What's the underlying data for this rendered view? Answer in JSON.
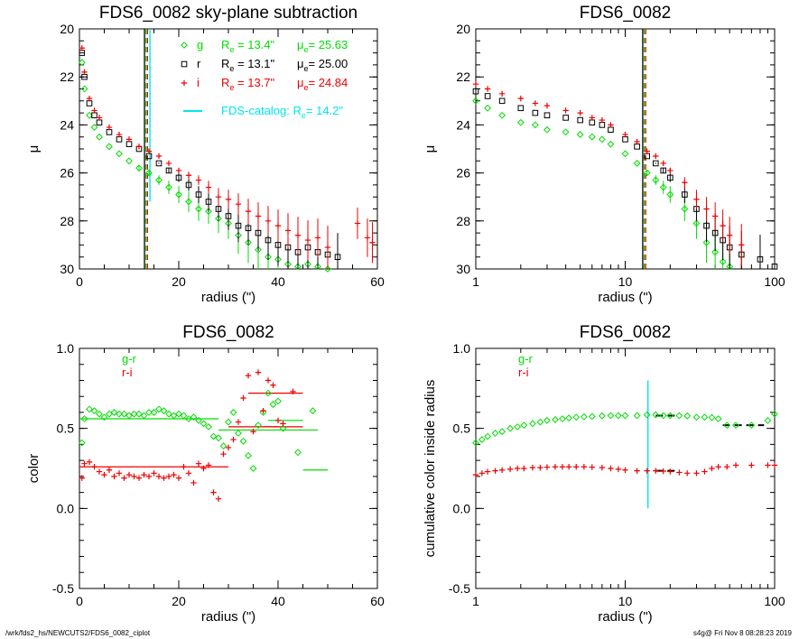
{
  "footer": {
    "path": "/wrk/fds2_hs/NEWCUTS2/FDS6_0082_ciplot",
    "stamp": "s4g@  Fri Nov  8 08:28:23 2019"
  },
  "colors": {
    "g": "#00dd00",
    "r": "#000000",
    "i": "#ee0000",
    "catalog": "#00e5ee"
  },
  "chart_data": [
    {
      "type": "scatter",
      "title": "FDS6_0082 sky-plane subtraction",
      "xlabel": "radius (\")",
      "ylabel": "μ",
      "xscale": "linear",
      "xlim": [
        0,
        60
      ],
      "ylim": [
        30,
        20
      ],
      "xticks": [
        "0",
        "20",
        "40",
        "60"
      ],
      "yticks": [
        "20",
        "22",
        "24",
        "26",
        "28",
        "30"
      ],
      "legend": {
        "position": "top-right",
        "entries": [
          {
            "symbol": "◇",
            "band": "g",
            "re_label": "R",
            "re_sub": "e",
            "re_value": "=  13.4\"",
            "mu_label": "μ",
            "mu_sub": "e",
            "mu_value": "= 25.63"
          },
          {
            "symbol": "□",
            "band": "r",
            "re_label": "R",
            "re_sub": "e",
            "re_value": "=  13.1\"",
            "mu_label": "μ",
            "mu_sub": "e",
            "mu_value": "= 25.00"
          },
          {
            "symbol": "+",
            "band": "i",
            "re_label": "R",
            "re_sub": "e",
            "re_value": "=  13.7\"",
            "mu_label": "μ",
            "mu_sub": "e",
            "mu_value": "= 24.84"
          }
        ],
        "catalog": {
          "text": "FDS-catalog: R",
          "sub": "e",
          "value": "=  14.2\""
        }
      },
      "vlines": [
        {
          "x": 13.1,
          "band": "r",
          "style": "solid"
        },
        {
          "x": 13.4,
          "band": "g",
          "style": "dashed"
        },
        {
          "x": 13.7,
          "band": "i",
          "style": "dashed"
        },
        {
          "x": 14.2,
          "band": "catalog",
          "style": "solid",
          "ymin": 27.2
        }
      ],
      "series": [
        {
          "name": "g",
          "marker": "diamond",
          "x": [
            0.5,
            1,
            2,
            3,
            4,
            6,
            8,
            10,
            12,
            14,
            16,
            18,
            20,
            22,
            24,
            26,
            28,
            30,
            32,
            34,
            36,
            38,
            40,
            42,
            44,
            46,
            48,
            50
          ],
          "y": [
            21.4,
            22.5,
            23.6,
            24.1,
            24.5,
            24.9,
            25.2,
            25.5,
            25.8,
            26.0,
            26.3,
            26.6,
            26.9,
            27.2,
            27.5,
            27.6,
            27.9,
            28.1,
            28.6,
            28.9,
            29.2,
            29.5,
            29.6,
            29.8,
            29.9,
            29.8,
            29.9,
            30.0
          ]
        },
        {
          "name": "r",
          "marker": "square",
          "x": [
            0.5,
            1,
            2,
            3,
            4,
            6,
            8,
            10,
            12,
            14,
            16,
            18,
            20,
            22,
            24,
            26,
            28,
            30,
            32,
            34,
            36,
            38,
            40,
            42,
            44,
            46,
            48,
            50,
            52
          ],
          "y": [
            21.0,
            22.0,
            23.1,
            23.6,
            23.9,
            24.3,
            24.6,
            24.8,
            25.0,
            25.3,
            25.6,
            25.9,
            26.2,
            26.5,
            26.9,
            27.2,
            27.5,
            27.8,
            28.2,
            28.3,
            28.5,
            28.8,
            29.0,
            29.1,
            29.3,
            29.1,
            29.3,
            29.4,
            29.5
          ]
        },
        {
          "name": "i",
          "marker": "plus",
          "x": [
            0.5,
            1,
            2,
            3,
            4,
            6,
            8,
            10,
            12,
            14,
            16,
            18,
            20,
            22,
            24,
            26,
            28,
            30,
            32,
            34,
            36,
            38,
            40,
            42,
            44,
            46,
            48,
            50,
            56,
            58,
            59
          ],
          "y": [
            20.8,
            21.8,
            22.9,
            23.4,
            23.7,
            24.1,
            24.4,
            24.6,
            24.9,
            25.1,
            25.3,
            25.6,
            25.9,
            26.1,
            26.3,
            26.6,
            27.0,
            27.1,
            27.3,
            27.6,
            27.8,
            28.0,
            28.2,
            28.4,
            28.6,
            28.8,
            28.7,
            29.1,
            28.1,
            28.7,
            28.9
          ]
        }
      ]
    },
    {
      "type": "scatter",
      "title": "FDS6_0082",
      "xlabel": "radius (\")",
      "ylabel": "μ",
      "xscale": "log",
      "xlim": [
        1,
        100
      ],
      "ylim": [
        30,
        20
      ],
      "xticks": [
        "1",
        "10",
        "100"
      ],
      "yticks": [
        "20",
        "22",
        "24",
        "26",
        "28",
        "30"
      ],
      "vlines": [
        {
          "x": 13.1,
          "band": "r",
          "style": "solid"
        },
        {
          "x": 13.4,
          "band": "g",
          "style": "dashed"
        },
        {
          "x": 13.7,
          "band": "i",
          "style": "dashed"
        }
      ],
      "series": [
        {
          "name": "g",
          "marker": "diamond",
          "x": [
            1,
            1.2,
            1.5,
            2,
            2.5,
            3,
            4,
            5,
            6,
            7,
            8,
            10,
            12,
            14,
            16,
            18,
            20,
            25,
            30,
            35,
            40,
            45,
            50
          ],
          "y": [
            23.0,
            23.3,
            23.6,
            23.9,
            24.0,
            24.2,
            24.3,
            24.4,
            24.5,
            24.6,
            24.8,
            25.2,
            25.6,
            26.0,
            26.3,
            26.6,
            26.9,
            27.5,
            28.1,
            28.9,
            29.3,
            29.7,
            29.9
          ]
        },
        {
          "name": "r",
          "marker": "square",
          "x": [
            1,
            1.2,
            1.5,
            2,
            2.5,
            3,
            4,
            5,
            6,
            7,
            8,
            10,
            12,
            14,
            16,
            18,
            20,
            25,
            30,
            35,
            40,
            45,
            50,
            60,
            80,
            100
          ],
          "y": [
            22.6,
            22.8,
            23.0,
            23.3,
            23.5,
            23.6,
            23.7,
            23.8,
            23.9,
            24.0,
            24.2,
            24.6,
            24.9,
            25.3,
            25.6,
            25.9,
            26.2,
            26.9,
            27.5,
            28.2,
            28.5,
            28.8,
            29.1,
            29.4,
            29.6,
            29.9
          ]
        },
        {
          "name": "i",
          "marker": "plus",
          "x": [
            1,
            1.2,
            1.5,
            2,
            2.5,
            3,
            4,
            5,
            6,
            7,
            8,
            10,
            12,
            14,
            16,
            18,
            20,
            25,
            30,
            35,
            40,
            45,
            50,
            60
          ],
          "y": [
            22.3,
            22.5,
            22.7,
            22.9,
            23.1,
            23.2,
            23.4,
            23.5,
            23.7,
            23.8,
            24.0,
            24.4,
            24.7,
            25.1,
            25.3,
            25.6,
            25.9,
            26.4,
            27.1,
            27.5,
            27.8,
            28.2,
            28.6,
            29.0
          ]
        }
      ]
    },
    {
      "type": "scatter",
      "title": "FDS6_0082",
      "xlabel": "radius (\")",
      "ylabel": "color",
      "xscale": "linear",
      "xlim": [
        0,
        60
      ],
      "ylim": [
        -0.5,
        1.0
      ],
      "xticks": [
        "0",
        "20",
        "40",
        "60"
      ],
      "yticks": [
        "-0.5",
        "0.0",
        "0.5",
        "1.0"
      ],
      "legend": {
        "position": "top-left",
        "entries": [
          {
            "label": "g-r",
            "band": "g"
          },
          {
            "label": "r-i",
            "band": "i"
          }
        ]
      },
      "series": [
        {
          "name": "g-r",
          "marker": "diamond",
          "x": [
            0.5,
            1,
            2,
            3,
            4,
            5,
            6,
            7,
            8,
            9,
            10,
            11,
            12,
            13,
            14,
            15,
            16,
            17,
            18,
            19,
            20,
            21,
            22,
            23,
            24,
            25,
            26,
            27,
            28,
            29,
            30,
            31,
            32,
            33,
            34,
            35,
            36,
            37,
            38,
            39,
            40,
            41,
            44,
            47
          ],
          "y": [
            0.41,
            0.56,
            0.62,
            0.61,
            0.59,
            0.57,
            0.59,
            0.6,
            0.59,
            0.59,
            0.58,
            0.59,
            0.59,
            0.58,
            0.6,
            0.6,
            0.62,
            0.61,
            0.59,
            0.58,
            0.59,
            0.58,
            0.56,
            0.57,
            0.55,
            0.53,
            0.51,
            0.45,
            0.44,
            0.39,
            0.54,
            0.6,
            0.47,
            0.42,
            0.33,
            0.25,
            0.52,
            0.6,
            0.72,
            0.65,
            0.67,
            0.5,
            0.35,
            0.61
          ]
        },
        {
          "name": "r-i",
          "marker": "plus",
          "x": [
            0.5,
            1,
            2,
            3,
            4,
            5,
            6,
            7,
            8,
            9,
            10,
            11,
            12,
            13,
            14,
            15,
            16,
            17,
            18,
            19,
            20,
            21,
            22,
            23,
            24,
            25,
            26,
            27,
            28,
            29,
            30,
            31,
            32,
            33,
            34,
            35,
            36,
            37,
            38,
            39,
            40,
            41,
            43
          ],
          "y": [
            0.19,
            0.28,
            0.29,
            0.26,
            0.23,
            0.21,
            0.24,
            0.2,
            0.22,
            0.19,
            0.21,
            0.2,
            0.19,
            0.21,
            0.2,
            0.22,
            0.2,
            0.19,
            0.2,
            0.21,
            0.19,
            0.26,
            0.22,
            0.16,
            0.28,
            0.25,
            0.27,
            0.1,
            0.06,
            0.34,
            0.38,
            0.43,
            0.54,
            0.69,
            0.83,
            0.48,
            0.85,
            0.61,
            0.8,
            0.77,
            0.55,
            0.53,
            0.73
          ]
        }
      ],
      "bin_lines": [
        {
          "band": "g",
          "x": [
            0,
            28
          ],
          "y": 0.56
        },
        {
          "band": "g",
          "x": [
            28,
            48
          ],
          "y": 0.49
        },
        {
          "band": "g",
          "x": [
            38,
            45
          ],
          "y": 0.55
        },
        {
          "band": "g",
          "x": [
            45,
            50
          ],
          "y": 0.24
        },
        {
          "band": "i",
          "x": [
            0,
            30
          ],
          "y": 0.26
        },
        {
          "band": "i",
          "x": [
            30,
            40
          ],
          "y": 0.51
        },
        {
          "band": "i",
          "x": [
            34,
            45
          ],
          "y": 0.72
        },
        {
          "band": "i",
          "x": [
            37,
            45
          ],
          "y": 0.51
        }
      ]
    },
    {
      "type": "scatter",
      "title": "FDS6_0082",
      "xlabel": "radius (\")",
      "ylabel": "cumulative color inside radius",
      "xscale": "log",
      "xlim": [
        1,
        100
      ],
      "ylim": [
        -0.5,
        1.0
      ],
      "xticks": [
        "1",
        "10",
        "100"
      ],
      "yticks": [
        "-0.5",
        "0.0",
        "0.5",
        "1.0"
      ],
      "legend": {
        "position": "top-left",
        "entries": [
          {
            "label": "g-r",
            "band": "g"
          },
          {
            "label": "r-i",
            "band": "i"
          }
        ]
      },
      "vlines": [
        {
          "x": 14.2,
          "band": "catalog",
          "style": "solid",
          "ymin": 0.0,
          "ymax": 0.8
        }
      ],
      "series": [
        {
          "name": "g-r",
          "marker": "diamond",
          "x": [
            1.0,
            1.1,
            1.2,
            1.35,
            1.5,
            1.7,
            1.9,
            2.1,
            2.4,
            2.7,
            3.0,
            3.4,
            3.8,
            4.2,
            4.7,
            5.3,
            6,
            7,
            8,
            9,
            10,
            12,
            14,
            16,
            18,
            20,
            23,
            26,
            30,
            34,
            38,
            42,
            48,
            55,
            70,
            90,
            100
          ],
          "y": [
            0.41,
            0.43,
            0.45,
            0.47,
            0.48,
            0.5,
            0.51,
            0.52,
            0.53,
            0.54,
            0.55,
            0.555,
            0.56,
            0.565,
            0.57,
            0.573,
            0.575,
            0.578,
            0.58,
            0.58,
            0.58,
            0.58,
            0.585,
            0.585,
            0.58,
            0.58,
            0.58,
            0.578,
            0.57,
            0.57,
            0.568,
            0.56,
            0.52,
            0.52,
            0.52,
            0.55,
            0.59
          ]
        },
        {
          "name": "r-i",
          "marker": "plus",
          "x": [
            1.0,
            1.1,
            1.2,
            1.35,
            1.5,
            1.7,
            1.9,
            2.1,
            2.4,
            2.7,
            3.0,
            3.4,
            3.8,
            4.2,
            4.7,
            5.3,
            6,
            7,
            8,
            9,
            10,
            12,
            14,
            16,
            18,
            20,
            23,
            26,
            30,
            34,
            38,
            42,
            48,
            55,
            70,
            90,
            100
          ],
          "y": [
            0.21,
            0.22,
            0.23,
            0.235,
            0.24,
            0.245,
            0.25,
            0.25,
            0.255,
            0.255,
            0.258,
            0.26,
            0.26,
            0.26,
            0.26,
            0.26,
            0.258,
            0.255,
            0.25,
            0.245,
            0.24,
            0.235,
            0.235,
            0.235,
            0.233,
            0.23,
            0.225,
            0.22,
            0.22,
            0.23,
            0.25,
            0.26,
            0.26,
            0.27,
            0.27,
            0.27,
            0.27
          ]
        }
      ],
      "bin_lines": [
        {
          "band": "r",
          "x": [
            16,
            22
          ],
          "y": 0.58,
          "style": "dashed"
        },
        {
          "band": "r",
          "x": [
            16,
            22
          ],
          "y": 0.235,
          "style": "dashed"
        },
        {
          "band": "r",
          "x": [
            45,
            85
          ],
          "y": 0.52,
          "style": "dashed"
        }
      ]
    }
  ]
}
